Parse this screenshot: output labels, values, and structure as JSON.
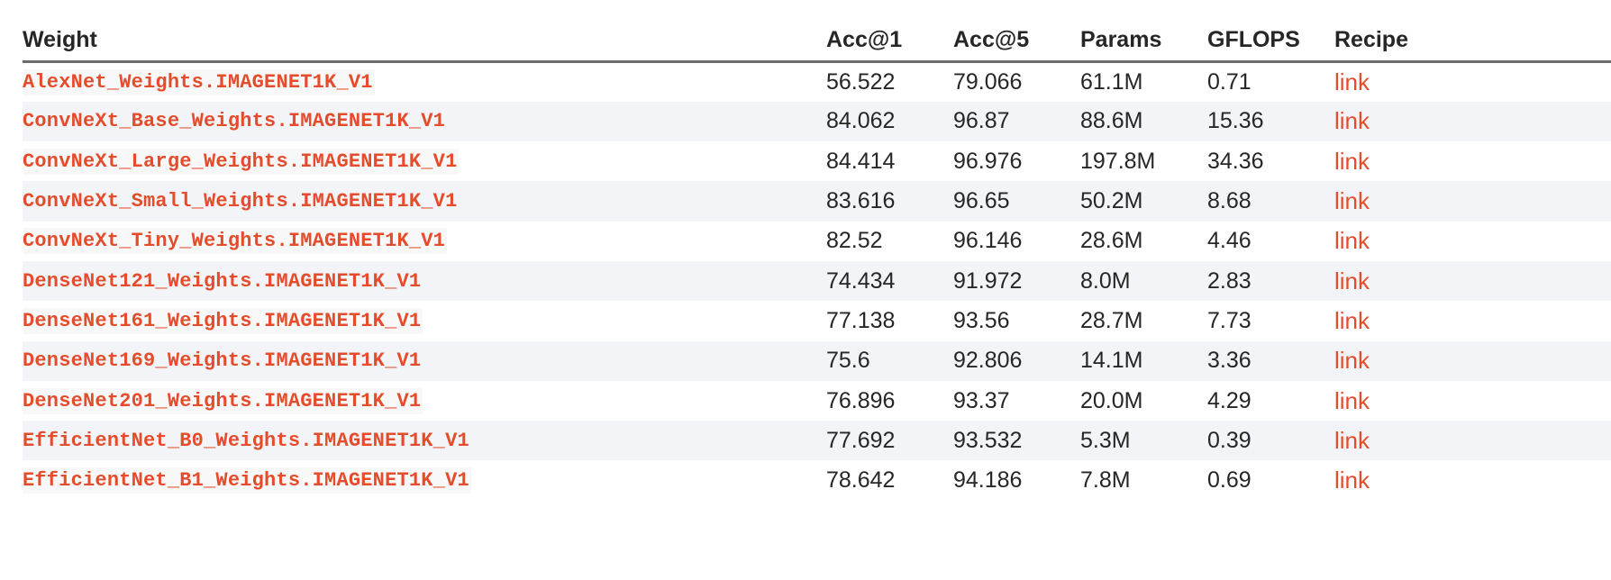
{
  "table": {
    "headers": {
      "weight": "Weight",
      "acc1": "Acc@1",
      "acc5": "Acc@5",
      "params": "Params",
      "gflops": "GFLOPS",
      "recipe": "Recipe"
    },
    "rows": [
      {
        "weight": "AlexNet_Weights.IMAGENET1K_V1",
        "acc1": "56.522",
        "acc5": "79.066",
        "params": "61.1M",
        "gflops": "0.71",
        "recipe": "link"
      },
      {
        "weight": "ConvNeXt_Base_Weights.IMAGENET1K_V1",
        "acc1": "84.062",
        "acc5": "96.87",
        "params": "88.6M",
        "gflops": "15.36",
        "recipe": "link"
      },
      {
        "weight": "ConvNeXt_Large_Weights.IMAGENET1K_V1",
        "acc1": "84.414",
        "acc5": "96.976",
        "params": "197.8M",
        "gflops": "34.36",
        "recipe": "link"
      },
      {
        "weight": "ConvNeXt_Small_Weights.IMAGENET1K_V1",
        "acc1": "83.616",
        "acc5": "96.65",
        "params": "50.2M",
        "gflops": "8.68",
        "recipe": "link"
      },
      {
        "weight": "ConvNeXt_Tiny_Weights.IMAGENET1K_V1",
        "acc1": "82.52",
        "acc5": "96.146",
        "params": "28.6M",
        "gflops": "4.46",
        "recipe": "link"
      },
      {
        "weight": "DenseNet121_Weights.IMAGENET1K_V1",
        "acc1": "74.434",
        "acc5": "91.972",
        "params": "8.0M",
        "gflops": "2.83",
        "recipe": "link"
      },
      {
        "weight": "DenseNet161_Weights.IMAGENET1K_V1",
        "acc1": "77.138",
        "acc5": "93.56",
        "params": "28.7M",
        "gflops": "7.73",
        "recipe": "link"
      },
      {
        "weight": "DenseNet169_Weights.IMAGENET1K_V1",
        "acc1": "75.6",
        "acc5": "92.806",
        "params": "14.1M",
        "gflops": "3.36",
        "recipe": "link"
      },
      {
        "weight": "DenseNet201_Weights.IMAGENET1K_V1",
        "acc1": "76.896",
        "acc5": "93.37",
        "params": "20.0M",
        "gflops": "4.29",
        "recipe": "link"
      },
      {
        "weight": "EfficientNet_B0_Weights.IMAGENET1K_V1",
        "acc1": "77.692",
        "acc5": "93.532",
        "params": "5.3M",
        "gflops": "0.39",
        "recipe": "link"
      },
      {
        "weight": "EfficientNet_B1_Weights.IMAGENET1K_V1",
        "acc1": "78.642",
        "acc5": "94.186",
        "params": "7.8M",
        "gflops": "0.69",
        "recipe": "link"
      }
    ]
  },
  "colors": {
    "link": "#e44c2c",
    "text": "#262626",
    "stripe": "#f3f4f7",
    "header_rule": "#6c6c6d"
  }
}
